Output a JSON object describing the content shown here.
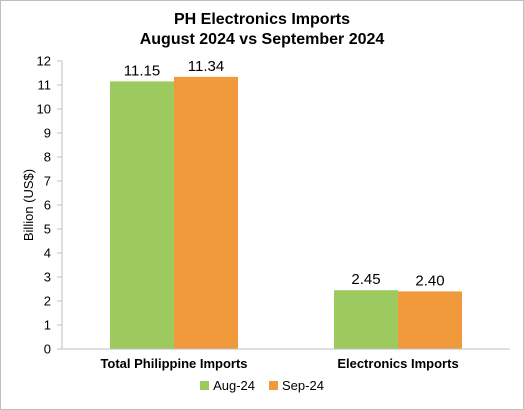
{
  "chart_data": {
    "type": "bar",
    "title": "PH Electronics Imports",
    "subtitle": "August 2024 vs September 2024",
    "ylabel": "Billion (US$)",
    "xlabel": "",
    "categories": [
      "Total Philippine Imports",
      "Electronics Imports"
    ],
    "series": [
      {
        "name": "Aug-24",
        "values": [
          11.15,
          2.45
        ],
        "labels": [
          "11.15",
          "2.45"
        ],
        "color": "#9dca5e"
      },
      {
        "name": "Sep-24",
        "values": [
          11.34,
          2.4
        ],
        "labels": [
          "11.34",
          "2.40"
        ],
        "color": "#f09a3c"
      }
    ],
    "ylim": [
      0,
      12
    ],
    "yticks": [
      0,
      1,
      2,
      3,
      4,
      5,
      6,
      7,
      8,
      9,
      10,
      11,
      12
    ],
    "grid": false,
    "legend": "bottom"
  }
}
